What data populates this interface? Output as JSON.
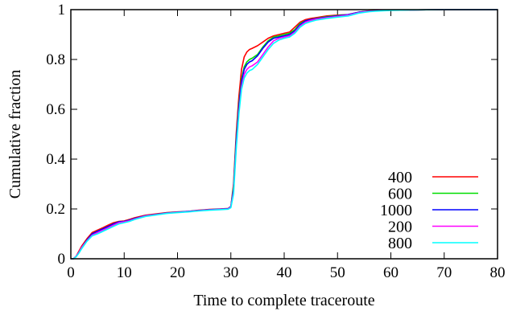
{
  "chart_data": {
    "type": "line",
    "title": "",
    "xlabel": "Time to complete traceroute",
    "ylabel": "Cumulative fraction",
    "xlim": [
      0,
      80
    ],
    "ylim": [
      0,
      1
    ],
    "xticks": [
      "0",
      "10",
      "20",
      "30",
      "40",
      "50",
      "60",
      "70",
      "80"
    ],
    "yticks": [
      "0",
      "0.2",
      "0.4",
      "0.6",
      "0.8",
      "1"
    ],
    "grid": false,
    "legend_position": "bottom-right",
    "series": [
      {
        "name": "400",
        "color": "#ff0000",
        "x": [
          0,
          0.5,
          1,
          1.5,
          2,
          3,
          4,
          5,
          6,
          7,
          8,
          9,
          10,
          11,
          12,
          14,
          16,
          18,
          20,
          22,
          24,
          26,
          28,
          29.5,
          30,
          30.5,
          31,
          31.5,
          32,
          32.5,
          33,
          33.5,
          34,
          35,
          36,
          37,
          38,
          39,
          40,
          41,
          42,
          43,
          44,
          45,
          46,
          48,
          50,
          52,
          54,
          56,
          58,
          60,
          65,
          70,
          75,
          80
        ],
        "y": [
          0,
          0,
          0.01,
          0.03,
          0.05,
          0.08,
          0.105,
          0.115,
          0.125,
          0.135,
          0.145,
          0.15,
          0.152,
          0.158,
          0.165,
          0.175,
          0.18,
          0.185,
          0.188,
          0.19,
          0.195,
          0.198,
          0.2,
          0.202,
          0.21,
          0.3,
          0.5,
          0.65,
          0.76,
          0.81,
          0.83,
          0.84,
          0.845,
          0.855,
          0.87,
          0.885,
          0.895,
          0.9,
          0.905,
          0.91,
          0.93,
          0.95,
          0.96,
          0.965,
          0.968,
          0.975,
          0.978,
          0.98,
          0.99,
          0.995,
          0.997,
          0.998,
          0.999,
          1.0,
          1.0,
          1.0
        ]
      },
      {
        "name": "600",
        "color": "#00dd00",
        "x": [
          0,
          0.5,
          1,
          1.5,
          2,
          3,
          4,
          5,
          6,
          7,
          8,
          9,
          10,
          11,
          12,
          14,
          16,
          18,
          20,
          22,
          24,
          26,
          28,
          29.5,
          30,
          30.5,
          31,
          31.5,
          32,
          32.5,
          33,
          33.5,
          34,
          35,
          36,
          37,
          38,
          39,
          40,
          41,
          42,
          43,
          44,
          45,
          46,
          48,
          50,
          52,
          54,
          56,
          58,
          60,
          65,
          70,
          75,
          80
        ],
        "y": [
          0,
          0,
          0.01,
          0.025,
          0.045,
          0.075,
          0.1,
          0.11,
          0.12,
          0.13,
          0.14,
          0.148,
          0.15,
          0.155,
          0.162,
          0.173,
          0.178,
          0.184,
          0.187,
          0.19,
          0.194,
          0.197,
          0.199,
          0.201,
          0.21,
          0.29,
          0.48,
          0.62,
          0.72,
          0.77,
          0.79,
          0.8,
          0.805,
          0.82,
          0.85,
          0.875,
          0.89,
          0.895,
          0.9,
          0.905,
          0.92,
          0.945,
          0.955,
          0.96,
          0.965,
          0.972,
          0.976,
          0.98,
          0.99,
          0.994,
          0.996,
          0.998,
          0.999,
          1.0,
          1.0,
          1.0
        ]
      },
      {
        "name": "1000",
        "color": "#0000ff",
        "x": [
          0,
          0.5,
          1,
          1.5,
          2,
          3,
          4,
          5,
          6,
          7,
          8,
          9,
          10,
          11,
          12,
          14,
          16,
          18,
          20,
          22,
          24,
          26,
          28,
          29.5,
          30,
          30.5,
          31,
          31.5,
          32,
          32.5,
          33,
          33.5,
          34,
          35,
          36,
          37,
          38,
          39,
          40,
          41,
          42,
          43,
          44,
          45,
          46,
          48,
          50,
          52,
          54,
          56,
          58,
          60,
          65,
          70,
          75,
          80
        ],
        "y": [
          0,
          0,
          0.01,
          0.025,
          0.045,
          0.075,
          0.1,
          0.11,
          0.12,
          0.13,
          0.14,
          0.148,
          0.15,
          0.155,
          0.162,
          0.173,
          0.178,
          0.184,
          0.187,
          0.19,
          0.194,
          0.197,
          0.199,
          0.201,
          0.21,
          0.28,
          0.47,
          0.61,
          0.71,
          0.76,
          0.78,
          0.79,
          0.795,
          0.815,
          0.845,
          0.87,
          0.885,
          0.89,
          0.895,
          0.9,
          0.915,
          0.94,
          0.955,
          0.96,
          0.964,
          0.97,
          0.975,
          0.98,
          0.99,
          0.994,
          0.996,
          0.998,
          0.999,
          1.0,
          1.0,
          1.0
        ]
      },
      {
        "name": "200",
        "color": "#ff00ff",
        "x": [
          0,
          0.5,
          1,
          1.5,
          2,
          3,
          4,
          5,
          6,
          7,
          8,
          9,
          10,
          11,
          12,
          14,
          16,
          18,
          20,
          22,
          24,
          26,
          28,
          29.5,
          30,
          30.5,
          31,
          31.5,
          32,
          32.5,
          33,
          33.5,
          34,
          35,
          36,
          37,
          38,
          39,
          40,
          41,
          42,
          43,
          44,
          45,
          46,
          48,
          50,
          52,
          54,
          56,
          58,
          60,
          65,
          70,
          75,
          80
        ],
        "y": [
          0,
          0,
          0.01,
          0.025,
          0.045,
          0.072,
          0.095,
          0.105,
          0.115,
          0.125,
          0.135,
          0.145,
          0.148,
          0.153,
          0.16,
          0.172,
          0.177,
          0.183,
          0.186,
          0.189,
          0.193,
          0.196,
          0.198,
          0.2,
          0.208,
          0.27,
          0.45,
          0.59,
          0.69,
          0.74,
          0.76,
          0.77,
          0.775,
          0.79,
          0.82,
          0.85,
          0.875,
          0.885,
          0.89,
          0.895,
          0.91,
          0.935,
          0.95,
          0.957,
          0.962,
          0.968,
          0.973,
          0.978,
          0.988,
          0.993,
          0.996,
          0.998,
          0.999,
          1.0,
          1.0,
          1.0
        ]
      },
      {
        "name": "800",
        "color": "#00ffff",
        "x": [
          0,
          0.5,
          1,
          1.5,
          2,
          3,
          4,
          5,
          6,
          7,
          8,
          9,
          10,
          11,
          12,
          14,
          16,
          18,
          20,
          22,
          24,
          26,
          28,
          29.5,
          30,
          30.5,
          31,
          31.5,
          32,
          32.5,
          33,
          33.5,
          34,
          35,
          36,
          37,
          38,
          39,
          40,
          41,
          42,
          43,
          44,
          45,
          46,
          48,
          50,
          52,
          54,
          56,
          58,
          60,
          65,
          70,
          75,
          80
        ],
        "y": [
          0,
          0,
          0.008,
          0.022,
          0.04,
          0.07,
          0.092,
          0.1,
          0.11,
          0.12,
          0.13,
          0.14,
          0.145,
          0.15,
          0.158,
          0.17,
          0.176,
          0.182,
          0.185,
          0.188,
          0.192,
          0.195,
          0.197,
          0.199,
          0.205,
          0.26,
          0.44,
          0.58,
          0.68,
          0.725,
          0.745,
          0.755,
          0.76,
          0.78,
          0.81,
          0.84,
          0.865,
          0.878,
          0.885,
          0.89,
          0.905,
          0.93,
          0.945,
          0.952,
          0.958,
          0.965,
          0.97,
          0.975,
          0.986,
          0.992,
          0.995,
          0.997,
          0.999,
          1.0,
          1.0,
          1.0
        ]
      }
    ]
  }
}
